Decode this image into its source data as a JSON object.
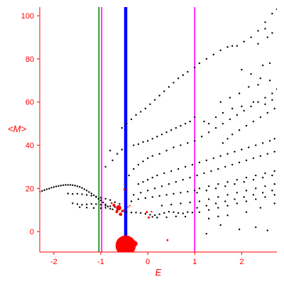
{
  "chart_data": {
    "type": "scatter",
    "title": "",
    "xlabel": "E",
    "ylabel": "<M>",
    "xlim": [
      -2.3,
      2.75
    ],
    "ylim": [
      -9.5,
      104
    ],
    "xticks": [
      -2,
      -1,
      0,
      1,
      2
    ],
    "xtick_labels": [
      "-2",
      "-1",
      "0",
      "1",
      "2"
    ],
    "yticks": [
      0,
      20,
      40,
      60,
      80,
      100
    ],
    "ytick_labels": [
      "0",
      "20",
      "40",
      "60",
      "80",
      "100"
    ],
    "grid": false,
    "colors": {
      "axes": "#ff0000",
      "points": "#000000",
      "highlight": "#ff0000"
    },
    "vertical_lines": [
      {
        "x": -1.04,
        "color": "#008000",
        "width": "thin"
      },
      {
        "x": -0.98,
        "color": "#ff00ff",
        "width": "thin"
      },
      {
        "x": -0.47,
        "color": "#0000ff",
        "width": "thick"
      },
      {
        "x": 1.0,
        "color": "#ff00ff",
        "width": "thin"
      }
    ],
    "series": [
      {
        "color": "#000000",
        "marker": "dot",
        "points": [
          [
            -2.3,
            18.4
          ],
          [
            -2.25,
            18.8
          ],
          [
            -2.2,
            19.2
          ],
          [
            -2.15,
            19.6
          ],
          [
            -2.1,
            19.9
          ],
          [
            -2.05,
            20.3
          ],
          [
            -2.0,
            20.6
          ],
          [
            -1.95,
            20.9
          ],
          [
            -1.9,
            21.1
          ],
          [
            -1.85,
            21.3
          ],
          [
            -1.8,
            21.5
          ],
          [
            -1.75,
            21.6
          ],
          [
            -1.7,
            21.6
          ],
          [
            -1.65,
            21.6
          ],
          [
            -1.6,
            21.5
          ],
          [
            -1.55,
            21.3
          ],
          [
            -1.5,
            21.0
          ],
          [
            -1.45,
            20.7
          ],
          [
            -1.4,
            20.2
          ],
          [
            -1.35,
            19.6
          ],
          [
            -1.3,
            19.0
          ],
          [
            -1.25,
            18.3
          ],
          [
            -1.2,
            17.6
          ],
          [
            -1.15,
            16.8
          ],
          [
            -1.1,
            16.0
          ],
          [
            -1.05,
            15.2
          ],
          [
            -1.0,
            14.4
          ],
          [
            -0.95,
            13.5
          ],
          [
            -0.9,
            12.6
          ],
          [
            -0.85,
            11.6
          ],
          [
            -0.8,
            10.6
          ],
          [
            -1.7,
            17.6
          ],
          [
            -1.6,
            17.4
          ],
          [
            -1.5,
            17.5
          ],
          [
            -1.4,
            17.3
          ],
          [
            -1.3,
            17.0
          ],
          [
            -1.2,
            16.6
          ],
          [
            -1.1,
            16.2
          ],
          [
            -1.0,
            15.7
          ],
          [
            -0.9,
            15.2
          ],
          [
            -0.8,
            14.6
          ],
          [
            -0.7,
            13.6
          ],
          [
            -0.6,
            12.8
          ],
          [
            -1.6,
            13.1
          ],
          [
            -1.5,
            12.7
          ],
          [
            -1.4,
            12.4
          ],
          [
            -1.3,
            12.6
          ],
          [
            -1.2,
            12.8
          ],
          [
            -1.1,
            12.7
          ],
          [
            -1.0,
            12.4
          ],
          [
            -0.9,
            12.0
          ],
          [
            -0.8,
            11.7
          ],
          [
            -0.7,
            11.4
          ],
          [
            -1.45,
            11.3
          ],
          [
            -1.3,
            11.1
          ],
          [
            -1.15,
            10.9
          ],
          [
            -1.0,
            10.8
          ],
          [
            -0.9,
            11.0
          ],
          [
            -0.75,
            10.3
          ],
          [
            -0.65,
            9.8
          ],
          [
            -0.55,
            9.4
          ],
          [
            -0.45,
            9.0
          ],
          [
            -0.35,
            8.8
          ],
          [
            -0.25,
            8.8
          ],
          [
            -0.15,
            8.6
          ],
          [
            -0.05,
            8.2
          ],
          [
            0.05,
            7.8
          ],
          [
            0.15,
            7.6
          ],
          [
            0.25,
            8.0
          ],
          [
            0.35,
            8.6
          ],
          [
            0.45,
            9.2
          ],
          [
            0.55,
            9.0
          ],
          [
            0.65,
            8.6
          ],
          [
            0.75,
            8.4
          ],
          [
            0.85,
            9.0
          ],
          [
            0.95,
            8.8
          ],
          [
            0.1,
            6.8
          ],
          [
            0.2,
            6.5
          ],
          [
            0.4,
            6.6
          ],
          [
            0.6,
            7.0
          ],
          [
            0.8,
            6.9
          ],
          [
            -0.55,
            38
          ],
          [
            -0.3,
            40
          ],
          [
            -0.2,
            40.5
          ],
          [
            -0.1,
            41.5
          ],
          [
            0.0,
            42
          ],
          [
            0.1,
            43
          ],
          [
            0.2,
            44
          ],
          [
            0.3,
            45
          ],
          [
            0.4,
            46
          ],
          [
            0.5,
            47
          ],
          [
            0.6,
            48
          ],
          [
            0.7,
            49
          ],
          [
            0.8,
            50
          ],
          [
            0.9,
            51
          ],
          [
            1.0,
            53
          ],
          [
            -0.9,
            30
          ],
          [
            -0.75,
            33
          ],
          [
            -0.65,
            36
          ],
          [
            -0.8,
            37.5
          ],
          [
            -0.55,
            48
          ],
          [
            -0.45,
            50
          ],
          [
            -0.35,
            52
          ],
          [
            -0.25,
            54
          ],
          [
            -0.15,
            55.5
          ],
          [
            -0.05,
            57
          ],
          [
            0.05,
            59
          ],
          [
            0.15,
            61
          ],
          [
            0.25,
            63
          ],
          [
            0.35,
            65
          ],
          [
            0.45,
            67
          ],
          [
            0.55,
            69
          ],
          [
            0.65,
            71
          ],
          [
            0.75,
            72.5
          ],
          [
            0.85,
            74
          ],
          [
            1.0,
            76
          ],
          [
            1.1,
            78
          ],
          [
            1.25,
            80
          ],
          [
            1.4,
            82
          ],
          [
            1.55,
            84
          ],
          [
            1.7,
            85.5
          ],
          [
            1.8,
            86
          ],
          [
            1.9,
            86
          ],
          [
            2.05,
            88
          ],
          [
            2.2,
            90
          ],
          [
            2.35,
            93
          ],
          [
            2.5,
            97
          ],
          [
            2.65,
            101
          ],
          [
            2.75,
            103
          ],
          [
            -0.4,
            26
          ],
          [
            -0.3,
            29
          ],
          [
            -0.2,
            31
          ],
          [
            -0.1,
            32.5
          ],
          [
            0.0,
            34
          ],
          [
            0.1,
            35
          ],
          [
            0.25,
            36
          ],
          [
            0.4,
            37.5
          ],
          [
            0.55,
            39
          ],
          [
            0.7,
            40
          ],
          [
            0.85,
            41
          ],
          [
            1.0,
            42
          ],
          [
            1.15,
            44
          ],
          [
            1.3,
            46
          ],
          [
            1.45,
            48
          ],
          [
            1.6,
            50
          ],
          [
            1.75,
            52
          ],
          [
            1.9,
            54
          ],
          [
            2.05,
            56
          ],
          [
            2.2,
            58
          ],
          [
            2.35,
            60
          ],
          [
            2.5,
            62
          ],
          [
            2.65,
            64
          ],
          [
            2.75,
            66
          ],
          [
            1.6,
            41
          ],
          [
            1.7,
            43
          ],
          [
            1.8,
            45
          ],
          [
            1.95,
            47
          ],
          [
            2.1,
            49
          ],
          [
            2.25,
            51
          ],
          [
            2.4,
            53
          ],
          [
            2.55,
            55
          ],
          [
            2.7,
            57
          ],
          [
            2.0,
            75
          ],
          [
            2.2,
            73
          ],
          [
            2.4,
            71
          ],
          [
            2.6,
            70
          ],
          [
            -0.2,
            22
          ],
          [
            -0.1,
            23
          ],
          [
            0.0,
            24
          ],
          [
            0.1,
            25
          ],
          [
            0.2,
            26
          ],
          [
            0.35,
            27
          ],
          [
            0.5,
            28
          ],
          [
            0.65,
            29
          ],
          [
            0.8,
            30
          ],
          [
            0.95,
            31
          ],
          [
            1.1,
            32
          ],
          [
            1.25,
            33
          ],
          [
            1.4,
            34
          ],
          [
            1.55,
            35
          ],
          [
            1.7,
            36
          ],
          [
            1.85,
            37
          ],
          [
            2.0,
            38
          ],
          [
            2.15,
            39
          ],
          [
            2.3,
            40
          ],
          [
            2.45,
            41
          ],
          [
            2.6,
            42
          ],
          [
            2.7,
            43
          ],
          [
            -0.3,
            17
          ],
          [
            -0.15,
            18
          ],
          [
            0.0,
            19
          ],
          [
            0.15,
            20
          ],
          [
            0.3,
            21
          ],
          [
            0.45,
            22
          ],
          [
            0.6,
            23
          ],
          [
            0.75,
            24
          ],
          [
            0.9,
            25
          ],
          [
            1.05,
            26
          ],
          [
            1.2,
            27
          ],
          [
            1.35,
            28
          ],
          [
            1.5,
            29
          ],
          [
            1.65,
            30
          ],
          [
            1.8,
            31
          ],
          [
            1.95,
            32
          ],
          [
            2.1,
            33
          ],
          [
            2.25,
            34
          ],
          [
            2.4,
            35
          ],
          [
            2.55,
            36
          ],
          [
            2.7,
            37
          ],
          [
            1.1,
            20
          ],
          [
            1.3,
            21
          ],
          [
            1.5,
            22
          ],
          [
            1.7,
            23
          ],
          [
            1.9,
            24
          ],
          [
            2.1,
            25
          ],
          [
            2.3,
            26
          ],
          [
            2.5,
            27
          ],
          [
            2.7,
            28
          ],
          [
            1.05,
            18
          ],
          [
            1.25,
            19
          ],
          [
            1.45,
            20
          ],
          [
            1.65,
            21
          ],
          [
            1.85,
            22
          ],
          [
            2.05,
            23
          ],
          [
            2.25,
            24
          ],
          [
            2.45,
            25
          ],
          [
            2.65,
            26
          ],
          [
            1.1,
            14
          ],
          [
            1.3,
            15
          ],
          [
            1.5,
            16
          ],
          [
            1.7,
            17
          ],
          [
            1.9,
            18
          ],
          [
            2.1,
            19
          ],
          [
            2.3,
            20
          ],
          [
            2.5,
            21
          ],
          [
            2.7,
            22
          ],
          [
            1.05,
            11
          ],
          [
            1.25,
            12
          ],
          [
            1.45,
            13
          ],
          [
            1.65,
            14
          ],
          [
            1.85,
            15
          ],
          [
            2.05,
            16
          ],
          [
            2.25,
            17
          ],
          [
            2.45,
            18
          ],
          [
            2.65,
            19
          ],
          [
            1.1,
            9
          ],
          [
            1.3,
            10
          ],
          [
            1.5,
            11
          ],
          [
            1.7,
            12
          ],
          [
            1.9,
            13
          ],
          [
            2.1,
            14
          ],
          [
            2.3,
            15
          ],
          [
            2.5,
            16
          ],
          [
            2.7,
            17
          ],
          [
            1.3,
            6
          ],
          [
            1.5,
            7
          ],
          [
            1.7,
            7.5
          ],
          [
            2.1,
            9
          ],
          [
            2.4,
            11
          ],
          [
            2.7,
            13
          ],
          [
            1.55,
            3
          ],
          [
            1.95,
            1
          ],
          [
            2.3,
            2
          ],
          [
            2.55,
            0.5
          ],
          [
            1.25,
            -1
          ],
          [
            -0.35,
            14
          ],
          [
            -0.2,
            15
          ],
          [
            -0.05,
            15.5
          ],
          [
            0.1,
            16
          ],
          [
            0.25,
            16.5
          ],
          [
            0.4,
            17
          ],
          [
            0.55,
            17.5
          ],
          [
            0.7,
            18
          ],
          [
            0.85,
            18.5
          ],
          [
            1.0,
            19
          ],
          [
            0.3,
            12
          ],
          [
            0.5,
            12.5
          ],
          [
            0.7,
            13
          ],
          [
            0.9,
            13.5
          ],
          [
            1.3,
            50
          ],
          [
            1.2,
            51
          ],
          [
            1.45,
            53
          ],
          [
            1.6,
            55
          ],
          [
            1.8,
            57
          ],
          [
            2.0,
            58
          ],
          [
            2.25,
            60
          ],
          [
            2.5,
            59
          ],
          [
            2.65,
            61
          ],
          [
            1.55,
            60
          ],
          [
            1.75,
            62
          ],
          [
            1.95,
            64
          ],
          [
            2.15,
            67
          ],
          [
            2.35,
            68
          ],
          [
            2.35,
            87
          ],
          [
            2.55,
            90
          ],
          [
            2.65,
            92
          ],
          [
            2.5,
            94
          ],
          [
            2.6,
            78
          ],
          [
            2.45,
            77
          ]
        ]
      },
      {
        "color": "#ff0000",
        "marker": "disk",
        "points": [
          [
            -0.47,
            -6.5,
            4.2
          ],
          [
            -0.28,
            -5.6,
            1.2
          ],
          [
            -0.62,
            11.0,
            1.1
          ],
          [
            -0.72,
            12.2,
            0.6
          ],
          [
            -0.66,
            9.2,
            0.6
          ],
          [
            -0.58,
            8.0,
            0.7
          ],
          [
            -0.52,
            9.6,
            0.5
          ],
          [
            -0.5,
            19.5,
            0.4
          ],
          [
            -0.02,
            9.0,
            0.45
          ],
          [
            0.08,
            9.2,
            0.35
          ],
          [
            0.02,
            6.5,
            0.45
          ],
          [
            -0.42,
            11.4,
            0.3
          ],
          [
            -0.38,
            12.0,
            0.3
          ],
          [
            0.42,
            -4.0,
            0.4
          ],
          [
            -0.77,
            13.2,
            0.4
          ],
          [
            -0.6,
            10.6,
            0.6
          ]
        ]
      }
    ]
  }
}
